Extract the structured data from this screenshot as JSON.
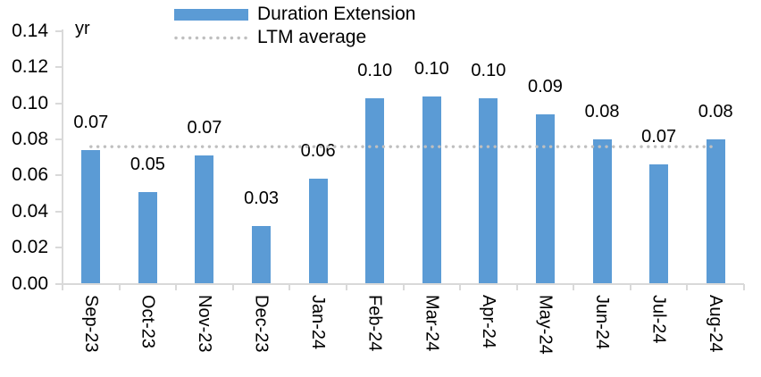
{
  "chart_data": {
    "type": "bar",
    "ylabel": "yr",
    "categories": [
      "Sep-23",
      "Oct-23",
      "Nov-23",
      "Dec-23",
      "Jan-24",
      "Feb-24",
      "Mar-24",
      "Apr-24",
      "May-24",
      "Jun-24",
      "Jul-24",
      "Aug-24"
    ],
    "series": [
      {
        "name": "Duration Extension",
        "type": "bar",
        "color": "#5B9BD5",
        "values": [
          0.074,
          0.051,
          0.071,
          0.032,
          0.058,
          0.103,
          0.104,
          0.103,
          0.094,
          0.08,
          0.066,
          0.08
        ],
        "data_labels": [
          "0.07",
          "0.05",
          "0.07",
          "0.03",
          "0.06",
          "0.10",
          "0.10",
          "0.10",
          "0.09",
          "0.08",
          "0.07",
          "0.08"
        ]
      },
      {
        "name": "LTM average",
        "type": "line",
        "line_style": "dotted",
        "color": "#BFBFBF",
        "value": 0.076
      }
    ],
    "y_axis": {
      "min": 0,
      "max": 0.14,
      "step": 0.02,
      "tick_labels": [
        "0.00",
        "0.02",
        "0.04",
        "0.06",
        "0.08",
        "0.10",
        "0.12",
        "0.14"
      ],
      "axis_color": "#D9D9D9",
      "text_color": "#000000"
    },
    "x_axis": {
      "label_rotation": "vertical"
    },
    "legend_position": "top",
    "grid": false,
    "background": "#FFFFFF"
  }
}
